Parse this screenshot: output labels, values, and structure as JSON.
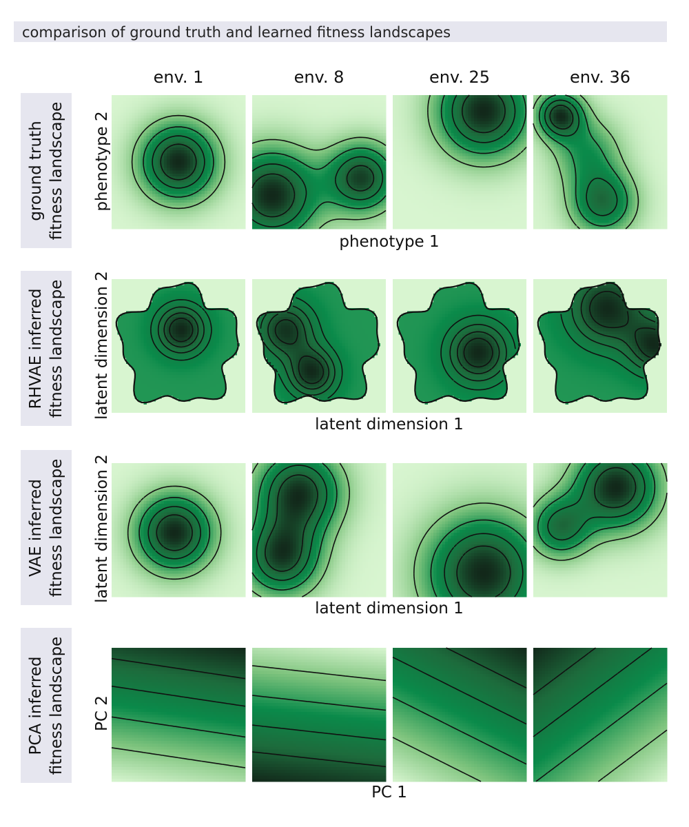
{
  "figure": {
    "title": "comparison of ground truth and learned fitness landscapes",
    "columns": [
      "env. 1",
      "env. 8",
      "env. 25",
      "env. 36"
    ],
    "rows": [
      {
        "label_lines": [
          "ground truth",
          "fitness landscape"
        ],
        "ylabel": "phenotype 2",
        "xlabel": "phenotype 1"
      },
      {
        "label_lines": [
          "RHVAE inferred",
          "fitness landscape"
        ],
        "ylabel": "latent dimension 2",
        "xlabel": "latent dimension 1"
      },
      {
        "label_lines": [
          "VAE inferred",
          "fitness landscape"
        ],
        "ylabel": "latent dimension 2",
        "xlabel": "latent dimension 1"
      },
      {
        "label_lines": [
          "PCA inferred",
          "fitness landscape"
        ],
        "ylabel": "PC 2",
        "xlabel": "PC 1"
      }
    ]
  },
  "chart_data": {
    "type": "heatmap",
    "colormap": [
      "#d8f5d0",
      "#7fc47e",
      "#0a8a4a",
      "#1d6b3c",
      "#12281a"
    ],
    "contour_style": "black dashed",
    "domain": [
      0,
      1
    ],
    "panels": [
      {
        "row": 0,
        "col": 0,
        "kind": "gaussians",
        "peaks": [
          {
            "x": 0.5,
            "y": 0.5,
            "h": 1.0,
            "s": 0.2
          }
        ]
      },
      {
        "row": 0,
        "col": 1,
        "kind": "gaussians",
        "peaks": [
          {
            "x": 0.15,
            "y": 0.25,
            "h": 1.0,
            "s": 0.24
          },
          {
            "x": 0.82,
            "y": 0.38,
            "h": 0.9,
            "s": 0.18
          }
        ]
      },
      {
        "row": 0,
        "col": 2,
        "kind": "gaussians",
        "peaks": [
          {
            "x": 0.68,
            "y": 0.88,
            "h": 1.0,
            "s": 0.24
          }
        ]
      },
      {
        "row": 0,
        "col": 3,
        "kind": "gaussians",
        "peaks": [
          {
            "x": 0.2,
            "y": 0.85,
            "h": 0.95,
            "s": 0.12
          },
          {
            "x": 0.52,
            "y": 0.2,
            "h": 0.75,
            "s": 0.17
          },
          {
            "x": 0.4,
            "y": 0.58,
            "h": 0.45,
            "s": 0.18
          }
        ]
      },
      {
        "row": 1,
        "col": 0,
        "kind": "masked",
        "peaks": [
          {
            "x": 0.52,
            "y": 0.62,
            "h": 0.9,
            "s": 0.13
          }
        ]
      },
      {
        "row": 1,
        "col": 1,
        "kind": "masked",
        "peaks": [
          {
            "x": 0.25,
            "y": 0.62,
            "h": 0.9,
            "s": 0.15
          },
          {
            "x": 0.45,
            "y": 0.3,
            "h": 0.95,
            "s": 0.13
          }
        ]
      },
      {
        "row": 1,
        "col": 2,
        "kind": "masked",
        "peaks": [
          {
            "x": 0.64,
            "y": 0.45,
            "h": 1.0,
            "s": 0.16
          }
        ]
      },
      {
        "row": 1,
        "col": 3,
        "kind": "masked",
        "peaks": [
          {
            "x": 0.55,
            "y": 0.78,
            "h": 0.9,
            "s": 0.2
          },
          {
            "x": 0.92,
            "y": 0.5,
            "h": 0.85,
            "s": 0.15
          }
        ]
      },
      {
        "row": 2,
        "col": 0,
        "kind": "gaussians",
        "peaks": [
          {
            "x": 0.47,
            "y": 0.48,
            "h": 1.0,
            "s": 0.2
          }
        ]
      },
      {
        "row": 2,
        "col": 1,
        "kind": "gaussians",
        "peaks": [
          {
            "x": 0.35,
            "y": 0.78,
            "h": 1.0,
            "s": 0.22
          },
          {
            "x": 0.22,
            "y": 0.3,
            "h": 0.95,
            "s": 0.2
          }
        ]
      },
      {
        "row": 2,
        "col": 2,
        "kind": "gaussians",
        "peaks": [
          {
            "x": 0.68,
            "y": 0.18,
            "h": 1.0,
            "s": 0.3
          }
        ]
      },
      {
        "row": 2,
        "col": 3,
        "kind": "gaussians",
        "peaks": [
          {
            "x": 0.62,
            "y": 0.82,
            "h": 1.0,
            "s": 0.22
          },
          {
            "x": 0.2,
            "y": 0.52,
            "h": 0.7,
            "s": 0.16
          }
        ]
      },
      {
        "row": 3,
        "col": 0,
        "kind": "linear",
        "gradient": [
          0.15,
          1.0
        ],
        "offset": 0.0
      },
      {
        "row": 3,
        "col": 1,
        "kind": "linear",
        "gradient": [
          -0.1,
          -0.9
        ],
        "offset": 0.9
      },
      {
        "row": 3,
        "col": 2,
        "kind": "linear",
        "gradient": [
          0.4,
          0.8
        ],
        "offset": 0.0
      },
      {
        "row": 3,
        "col": 3,
        "kind": "linear",
        "gradient": [
          -0.6,
          0.8
        ],
        "offset": 0.5
      }
    ]
  }
}
